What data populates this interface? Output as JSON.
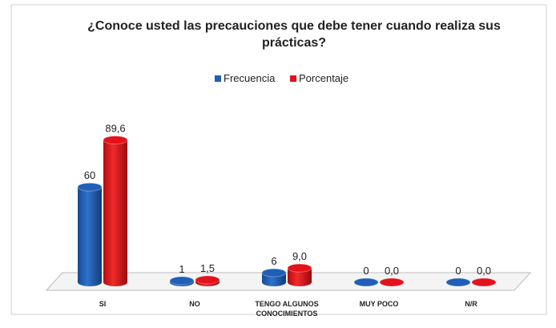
{
  "chart_data": {
    "type": "bar3d",
    "title": "¿Conoce usted las precauciones que debe tener cuando realiza sus prácticas?",
    "categories": [
      "SI",
      "NO",
      "TENGO ALGUNOS CONOCIMIENTOS",
      "MUY POCO",
      "N/R"
    ],
    "series": [
      {
        "name": "Frecuencia",
        "color": "#1f5fb8",
        "values": [
          60,
          1,
          6,
          0,
          0
        ]
      },
      {
        "name": "Porcentaje",
        "color": "#e3121b",
        "values": [
          89.6,
          1.5,
          9.0,
          0.0,
          0.0
        ],
        "value_labels": [
          "89,6",
          "1,5",
          "9,0",
          "0,0",
          "0,0"
        ]
      }
    ],
    "legend": "top"
  }
}
